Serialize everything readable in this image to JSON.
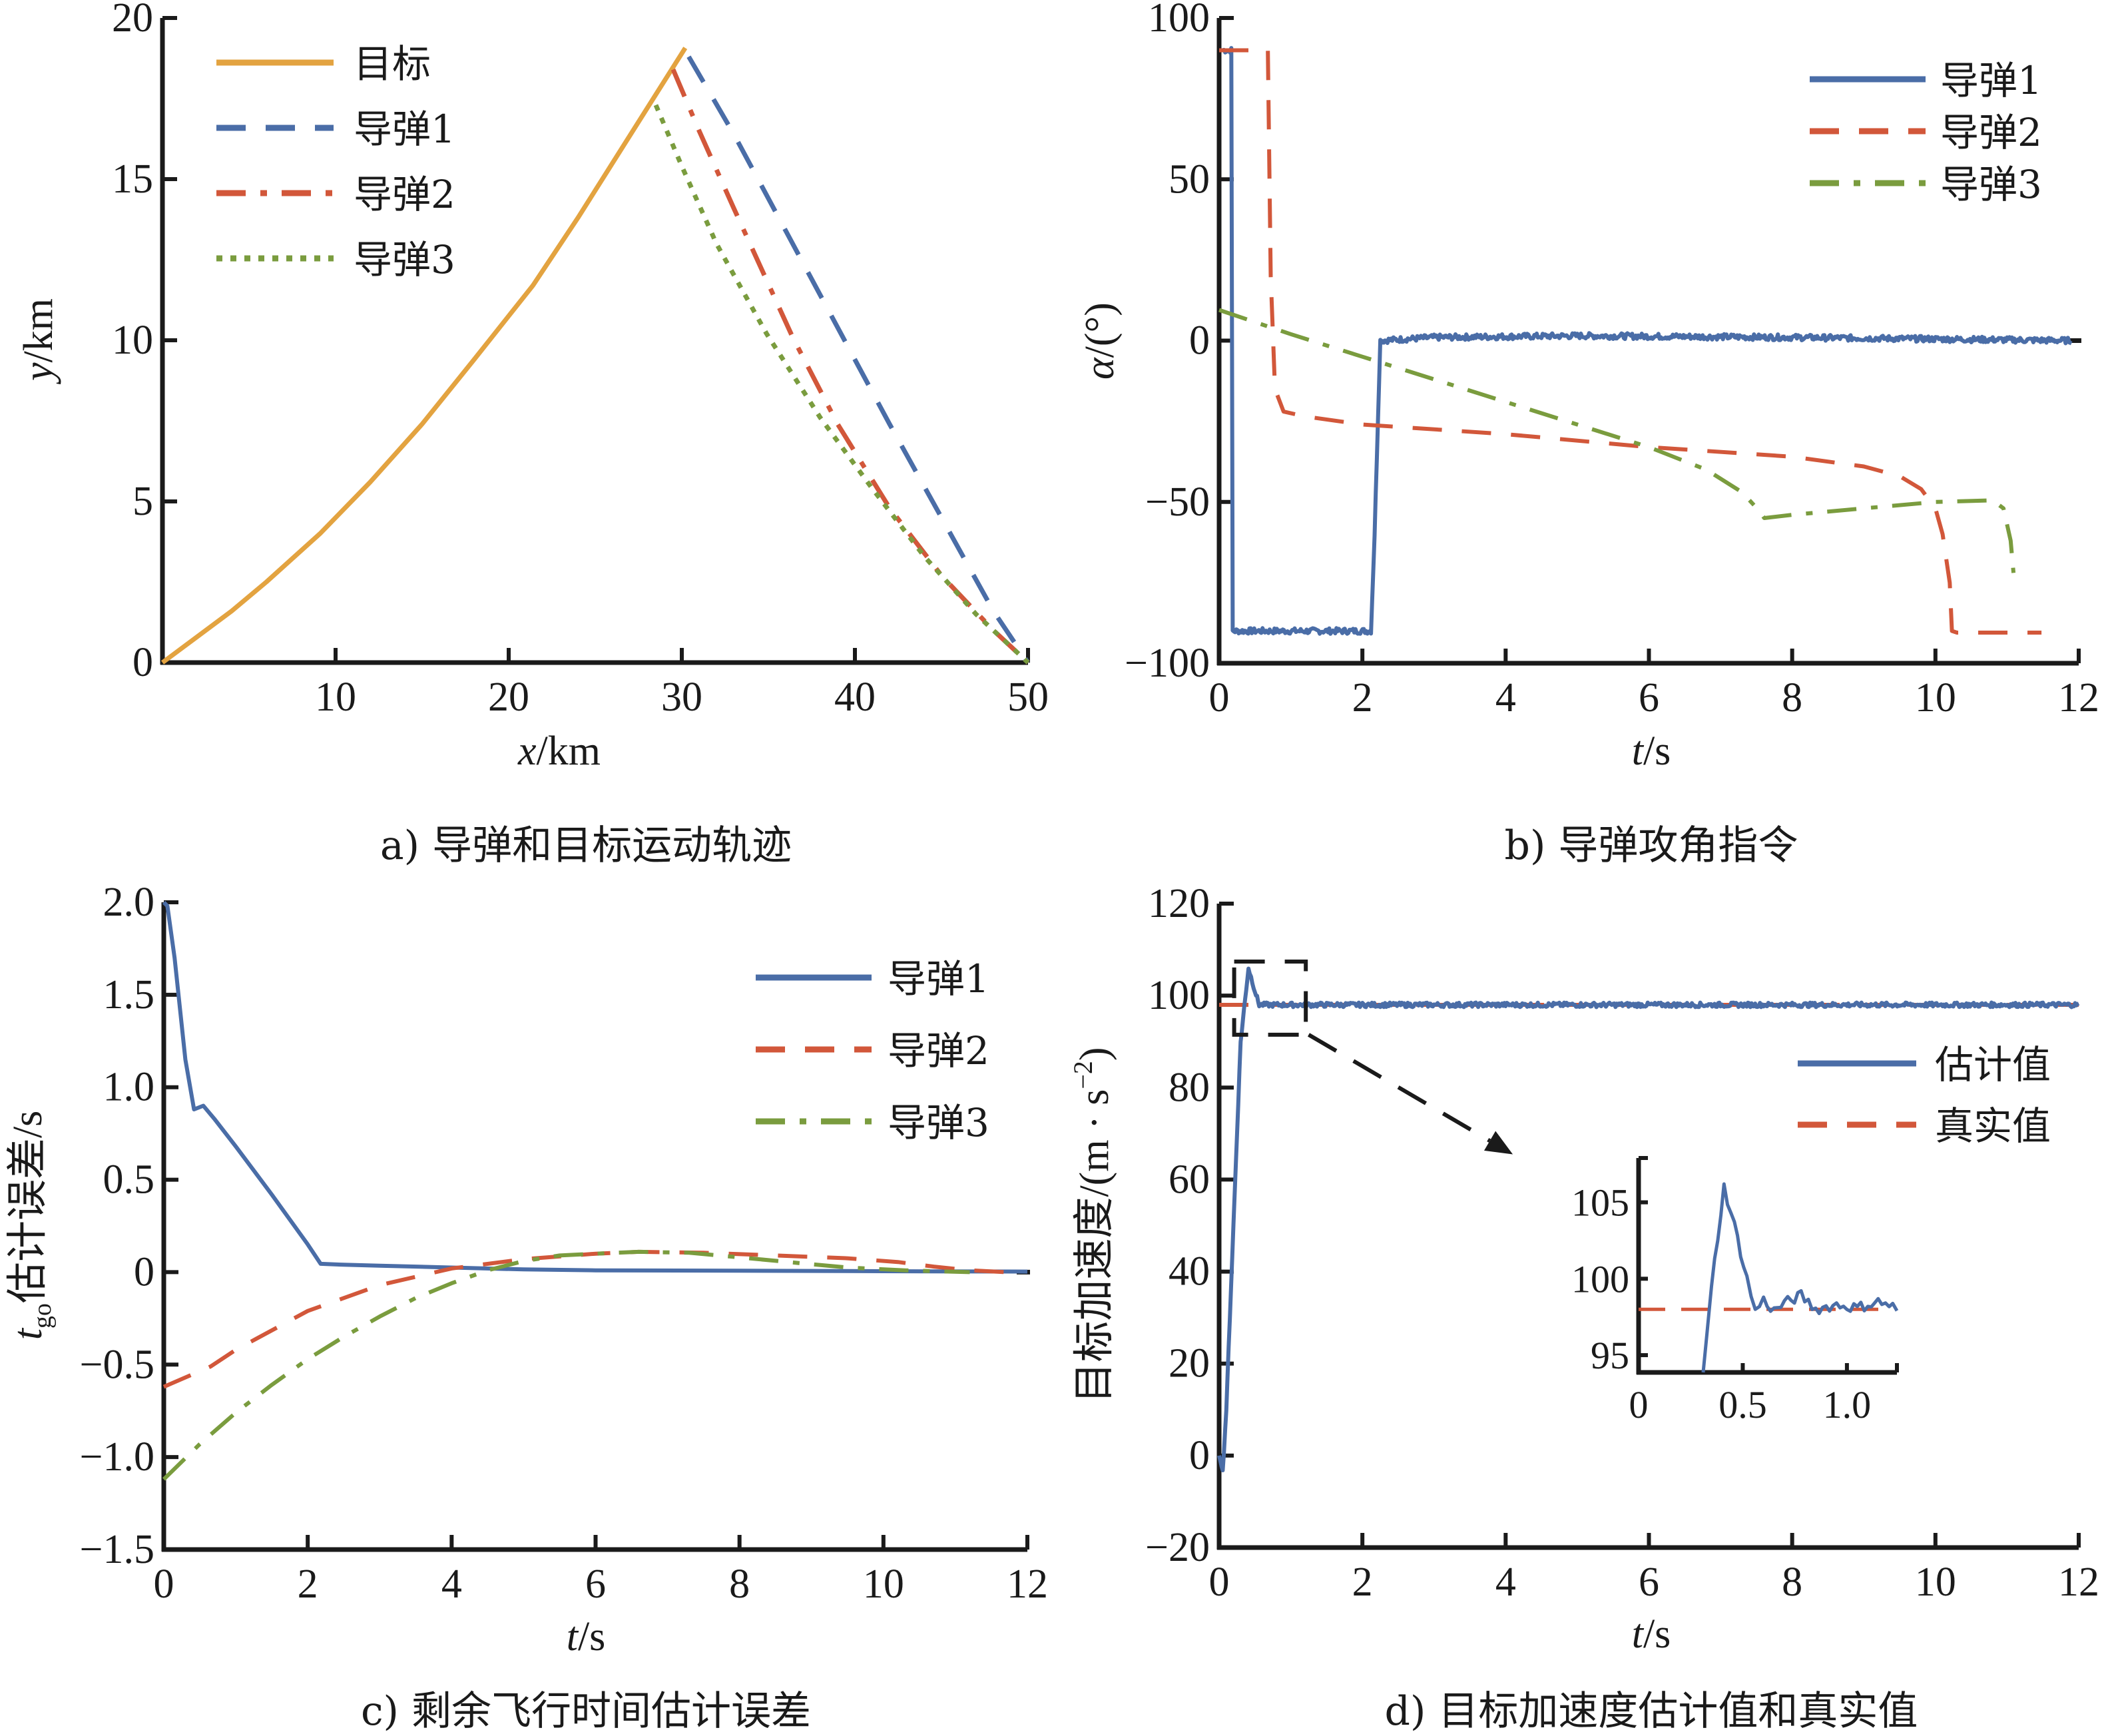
{
  "colors": {
    "target": "#E3A340",
    "missile1": "#4A6DA7",
    "missile2": "#D2573A",
    "missile3": "#7A9C3E",
    "estimate": "#4A6DA7",
    "truth": "#D2573A",
    "axis": "#1a1a1a"
  },
  "chart_data": [
    {
      "id": "a",
      "type": "line",
      "caption": "a) 导弹和目标运动轨迹",
      "xlabel_italic": "x",
      "xlabel_unit": "/km",
      "ylabel_italic": "y",
      "ylabel_unit": "/km",
      "xlim": [
        0,
        50
      ],
      "ylim": [
        0,
        20
      ],
      "xticks": [
        10,
        20,
        30,
        40,
        50
      ],
      "xtick_labels": [
        "10",
        "20",
        "30",
        "40",
        "50"
      ],
      "yticks": [
        0,
        5,
        10,
        15,
        20
      ],
      "ytick_labels": [
        "0",
        "5",
        "10",
        "15",
        "20"
      ],
      "legend_position": "top-left",
      "legend": [
        "目标",
        "导弹1",
        "导弹2",
        "导弹3"
      ],
      "series": [
        {
          "name": "目标",
          "style": "solid",
          "color_key": "target",
          "x": [
            0,
            2,
            4,
            6,
            9.1,
            12,
            15,
            18,
            21.4,
            24,
            26,
            28,
            30.2
          ],
          "y": [
            0,
            0.8,
            1.6,
            2.5,
            4.0,
            5.6,
            7.4,
            9.4,
            11.7,
            13.8,
            15.5,
            17.2,
            19.07
          ]
        },
        {
          "name": "导弹1",
          "style": "dashed",
          "color_key": "missile1",
          "x": [
            30.4,
            33,
            36,
            39.3,
            42,
            45,
            48,
            50
          ],
          "y": [
            18.8,
            16.4,
            13.4,
            10.1,
            7.4,
            4.5,
            1.6,
            0
          ]
        },
        {
          "name": "导弹2",
          "style": "dashdot",
          "color_key": "missile2",
          "x": [
            29.5,
            31,
            33,
            36.4,
            39,
            42,
            45,
            48,
            50
          ],
          "y": [
            18.4,
            16.5,
            14.1,
            10.1,
            7.4,
            4.8,
            2.7,
            1.0,
            0
          ]
        },
        {
          "name": "导弹3",
          "style": "dotted",
          "color_key": "missile3",
          "x": [
            28.5,
            30,
            32,
            34.9,
            38,
            41,
            44,
            47,
            50
          ],
          "y": [
            17.3,
            15.4,
            13.0,
            10.2,
            7.6,
            5.4,
            3.3,
            1.5,
            0
          ]
        }
      ]
    },
    {
      "id": "b",
      "type": "line",
      "caption": "b) 导弹攻角指令",
      "xlabel_italic": "t",
      "xlabel_unit": "/s",
      "ylabel_italic": "α",
      "ylabel_unit": "/(°)",
      "xlim": [
        0,
        12
      ],
      "ylim": [
        -100,
        100
      ],
      "xticks": [
        0,
        2,
        4,
        6,
        8,
        10,
        12
      ],
      "xtick_labels": [
        "0",
        "2",
        "4",
        "6",
        "8",
        "10",
        "12"
      ],
      "yticks": [
        -100,
        -50,
        0,
        50,
        100
      ],
      "ytick_labels": [
        "−100",
        "−50",
        "0",
        "50",
        "100"
      ],
      "legend_position": "top-right",
      "legend": [
        "导弹1",
        "导弹2",
        "导弹3"
      ],
      "series": [
        {
          "name": "导弹1",
          "style": "solid",
          "color_key": "missile1",
          "noise": 0.9,
          "x": [
            0,
            0.17,
            0.19,
            2.12,
            2.17,
            2.25,
            3,
            5,
            8,
            10,
            11.9
          ],
          "y": [
            90,
            90,
            -90,
            -90,
            -60,
            0,
            1,
            1.5,
            1,
            0.5,
            0
          ]
        },
        {
          "name": "导弹2",
          "style": "dashed",
          "color_key": "missile2",
          "x": [
            0,
            0.68,
            0.72,
            0.78,
            0.9,
            1.2,
            2,
            4,
            6,
            8,
            9,
            9.5,
            9.8,
            10.0,
            10.1,
            10.2,
            10.23,
            10.3,
            11.48
          ],
          "y": [
            90,
            90,
            20,
            -15,
            -22,
            -23.5,
            -26,
            -29,
            -33,
            -36,
            -39,
            -42,
            -46,
            -52,
            -60,
            -75,
            -90,
            -90.5,
            -90.5
          ]
        },
        {
          "name": "导弹3",
          "style": "dashdot",
          "color_key": "missile3",
          "x": [
            0,
            1,
            2,
            3,
            4,
            5,
            6,
            6.8,
            7.3,
            7.55,
            7.61,
            8,
            9,
            10,
            10.8,
            10.95,
            11.05,
            11.09
          ],
          "y": [
            9.5,
            2,
            -5,
            -12,
            -19,
            -26,
            -33,
            -40,
            -47,
            -53,
            -55,
            -54,
            -52,
            -50,
            -49.5,
            -52,
            -62,
            -72
          ]
        }
      ]
    },
    {
      "id": "c",
      "type": "line",
      "caption": "c) 剩余飞行时间估计误差",
      "xlabel_italic": "t",
      "xlabel_unit": "/s",
      "ylabel_italic": "t",
      "ylabel_sub": "go",
      "ylabel_unit": "估计误差/s",
      "xlim": [
        0,
        12
      ],
      "ylim": [
        -1.5,
        2.0
      ],
      "xticks": [
        0,
        2,
        4,
        6,
        8,
        10,
        12
      ],
      "xtick_labels": [
        "0",
        "2",
        "4",
        "6",
        "8",
        "10",
        "12"
      ],
      "yticks": [
        -1.5,
        -1.0,
        -0.5,
        0,
        0.5,
        1.0,
        1.5,
        2.0
      ],
      "ytick_labels": [
        "−1.5",
        "−1.0",
        "−0.5",
        "0",
        "0.5",
        "1.0",
        "1.5",
        "2.0"
      ],
      "legend_position": "top-right",
      "legend": [
        "导弹1",
        "导弹2",
        "导弹3"
      ],
      "series": [
        {
          "name": "导弹1",
          "style": "solid",
          "color_key": "missile1",
          "x": [
            0,
            0.05,
            0.15,
            0.3,
            0.42,
            0.55,
            0.7,
            1.0,
            1.5,
            2.0,
            2.18,
            2.5,
            3,
            4,
            5,
            6,
            8,
            10,
            12
          ],
          "y": [
            2.0,
            1.98,
            1.7,
            1.15,
            0.88,
            0.9,
            0.83,
            0.68,
            0.42,
            0.15,
            0.045,
            0.04,
            0.035,
            0.025,
            0.015,
            0.01,
            0.008,
            0.005,
            0.003
          ]
        },
        {
          "name": "导弹2",
          "style": "dashed",
          "color_key": "missile2",
          "x": [
            0,
            0.65,
            1,
            2,
            3,
            4,
            5,
            6,
            6.6,
            7.5,
            8.5,
            9.5,
            10.2,
            10.7,
            11.2,
            11.7
          ],
          "y": [
            -0.62,
            -0.51,
            -0.42,
            -0.21,
            -0.07,
            0.02,
            0.07,
            0.1,
            0.11,
            0.105,
            0.09,
            0.075,
            0.055,
            0.03,
            0.01,
            0
          ]
        },
        {
          "name": "导弹3",
          "style": "dashdot",
          "color_key": "missile3",
          "x": [
            0,
            0.5,
            1,
            1.5,
            2,
            2.5,
            3,
            3.5,
            4,
            4.5,
            5,
            5.5,
            6,
            6.6,
            7.3,
            8,
            8.8,
            9.5,
            10.3,
            11.2
          ],
          "y": [
            -1.12,
            -0.93,
            -0.76,
            -0.61,
            -0.47,
            -0.35,
            -0.24,
            -0.14,
            -0.06,
            0.01,
            0.06,
            0.09,
            0.1,
            0.11,
            0.105,
            0.08,
            0.05,
            0.025,
            0.01,
            0
          ]
        }
      ]
    },
    {
      "id": "d",
      "type": "line",
      "caption": "d) 目标加速度估计值和真实值",
      "xlabel_italic": "t",
      "xlabel_unit": "/s",
      "ylabel_text": "目标加速度/(m · s",
      "ylabel_sup": "−2",
      "ylabel_close": ")",
      "xlim": [
        0,
        12
      ],
      "ylim": [
        -20,
        120
      ],
      "xticks": [
        0,
        2,
        4,
        6,
        8,
        10,
        12
      ],
      "xtick_labels": [
        "0",
        "2",
        "4",
        "6",
        "8",
        "10",
        "12"
      ],
      "yticks": [
        -20,
        0,
        20,
        40,
        60,
        80,
        100,
        120
      ],
      "ytick_labels": [
        "−20",
        "0",
        "20",
        "40",
        "60",
        "80",
        "100",
        "120"
      ],
      "legend_position": "right",
      "legend": [
        "估计值",
        "真实值"
      ],
      "zoom_box": {
        "x": [
          0.21,
          1.21
        ],
        "y": [
          91.5,
          107.4
        ]
      },
      "arrow": {
        "from": [
          1.25,
          91.5
        ],
        "to": [
          4.1,
          65.5
        ]
      },
      "series": [
        {
          "name": "估计值",
          "style": "solid",
          "color_key": "estimate",
          "noise": 0.5,
          "x": [
            0,
            0.05,
            0.1,
            0.2,
            0.3,
            0.41,
            0.5,
            0.56,
            1,
            3,
            6,
            9,
            12
          ],
          "y": [
            0,
            -3.5,
            10,
            50,
            90,
            106,
            101,
            98,
            98,
            98,
            98,
            98,
            98
          ]
        },
        {
          "name": "真实值",
          "style": "dashed",
          "color_key": "truth",
          "x": [
            0,
            12
          ],
          "y": [
            98,
            98
          ]
        }
      ],
      "inset": {
        "xlim": [
          0,
          1.24
        ],
        "ylim": [
          93.87,
          107.9
        ],
        "xticks": [
          0,
          0.5,
          1.0
        ],
        "xtick_labels": [
          "0",
          "0.5",
          "1.0"
        ],
        "yticks": [
          95,
          100,
          105
        ],
        "ytick_labels": [
          "95",
          "100",
          "105"
        ],
        "series": [
          {
            "name": "估计值",
            "style": "solid",
            "color_key": "estimate",
            "noise": 0.35,
            "x": [
              0.31,
              0.35,
              0.41,
              0.46,
              0.52,
              0.56,
              0.6,
              0.65,
              0.7,
              0.78,
              0.85,
              0.95,
              1.05,
              1.15,
              1.22,
              1.24
            ],
            "y": [
              93.87,
              99.5,
              106,
              103.5,
              100,
              97.9,
              98.6,
              97.9,
              98.4,
              98.9,
              98.0,
              98.3,
              98.1,
              98.5,
              98.2,
              97.7
            ]
          },
          {
            "name": "真实值",
            "style": "dashed",
            "color_key": "truth",
            "x": [
              0,
              1.2
            ],
            "y": [
              98,
              98
            ]
          }
        ]
      }
    }
  ]
}
